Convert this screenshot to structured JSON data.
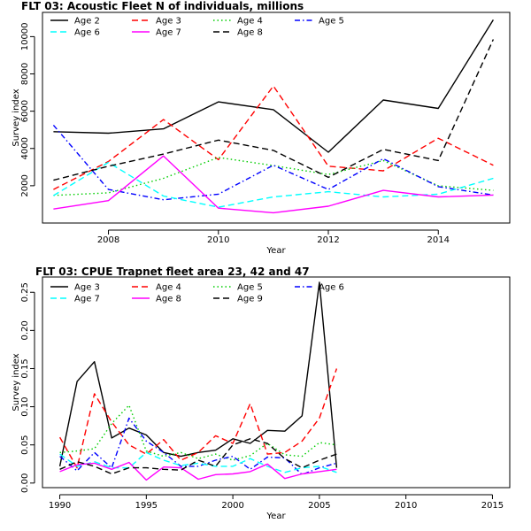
{
  "chart_data": [
    {
      "type": "line",
      "title": "FLT 03: Acoustic Fleet   N of individuals, millions",
      "xlabel": "Year",
      "ylabel": "Survey index",
      "xlim": [
        2006.8,
        2015.3
      ],
      "ylim": [
        0,
        11300
      ],
      "xticks": [
        2008,
        2010,
        2012,
        2014
      ],
      "yticks": [
        2000,
        4000,
        6000,
        8000,
        10000
      ],
      "legend_position": "top-left",
      "x": [
        2007,
        2008,
        2009,
        2010,
        2011,
        2012,
        2013,
        2014,
        2015
      ],
      "series": [
        {
          "name": "Age 2",
          "color": "#000000",
          "dash": "solid",
          "values": [
            4900,
            4820,
            5050,
            6500,
            6080,
            3800,
            6600,
            6150,
            10900
          ]
        },
        {
          "name": "Age 3",
          "color": "#ff0000",
          "dash": "longdash",
          "values": [
            1800,
            3300,
            5550,
            3400,
            7350,
            3050,
            2800,
            4550,
            3100
          ]
        },
        {
          "name": "Age 4",
          "color": "#00cd00",
          "dash": "dotted",
          "values": [
            1480,
            1620,
            2400,
            3520,
            3080,
            2600,
            3350,
            2000,
            1750
          ]
        },
        {
          "name": "Age 5",
          "color": "#0000ff",
          "dash": "dotdash",
          "values": [
            5250,
            1800,
            1250,
            1550,
            3100,
            1800,
            3450,
            1950,
            1500
          ]
        },
        {
          "name": "Age 6",
          "color": "#00ffff",
          "dash": "longdash",
          "values": [
            1470,
            3250,
            1450,
            850,
            1400,
            1680,
            1400,
            1550,
            2400
          ]
        },
        {
          "name": "Age 7",
          "color": "#ff00ff",
          "dash": "solid",
          "values": [
            750,
            1200,
            3600,
            800,
            550,
            900,
            1750,
            1400,
            1500
          ]
        },
        {
          "name": "Age 8",
          "color": "#000000",
          "dash": "longdash",
          "values": [
            2300,
            3050,
            3700,
            4450,
            3900,
            2450,
            3950,
            3350,
            9850
          ]
        }
      ]
    },
    {
      "type": "line",
      "title": "FLT 03: CPUE Trapnet fleet area 23, 42 and 47",
      "xlabel": "Year",
      "ylabel": "Survey index",
      "xlim": [
        1989,
        2016
      ],
      "ylim": [
        -0.006,
        0.27
      ],
      "xticks": [
        1990,
        1995,
        2000,
        2005,
        2010,
        2015
      ],
      "yticks": [
        0.0,
        0.05,
        0.1,
        0.15,
        0.2,
        0.25
      ],
      "ytick_labels": [
        "0.00",
        "0.05",
        "0.10",
        "0.15",
        "0.20",
        "0.25"
      ],
      "legend_position": "top-left",
      "x": [
        1990,
        1991,
        1992,
        1993,
        1994,
        1995,
        1996,
        1997,
        1998,
        1999,
        2000,
        2001,
        2002,
        2003,
        2004,
        2005,
        2006
      ],
      "series": [
        {
          "name": "Age 3",
          "color": "#000000",
          "dash": "solid",
          "values": [
            0.022,
            0.133,
            0.159,
            0.059,
            0.072,
            0.063,
            0.04,
            0.035,
            0.04,
            0.043,
            0.058,
            0.052,
            0.069,
            0.068,
            0.088,
            0.263,
            0.02
          ]
        },
        {
          "name": "Age 4",
          "color": "#ff0000",
          "dash": "longdash",
          "values": [
            0.06,
            0.02,
            0.117,
            0.08,
            0.05,
            0.038,
            0.057,
            0.03,
            0.04,
            0.062,
            0.052,
            0.104,
            0.038,
            0.04,
            0.055,
            0.085,
            0.15
          ]
        },
        {
          "name": "Age 5",
          "color": "#00cd00",
          "dash": "dotted",
          "values": [
            0.04,
            0.042,
            0.045,
            0.078,
            0.102,
            0.042,
            0.035,
            0.04,
            0.032,
            0.038,
            0.03,
            0.036,
            0.052,
            0.037,
            0.035,
            0.053,
            0.05
          ]
        },
        {
          "name": "Age 6",
          "color": "#0000ff",
          "dash": "dotdash",
          "values": [
            0.035,
            0.016,
            0.04,
            0.02,
            0.085,
            0.055,
            0.04,
            0.022,
            0.022,
            0.03,
            0.035,
            0.018,
            0.034,
            0.033,
            0.011,
            0.02,
            0.026
          ]
        },
        {
          "name": "Age 7",
          "color": "#00ffff",
          "dash": "longdash",
          "values": [
            0.038,
            0.022,
            0.028,
            0.02,
            0.02,
            0.04,
            0.03,
            0.023,
            0.026,
            0.022,
            0.022,
            0.032,
            0.022,
            0.014,
            0.02,
            0.022,
            0.014
          ]
        },
        {
          "name": "Age 8",
          "color": "#ff00ff",
          "dash": "solid",
          "values": [
            0.015,
            0.024,
            0.026,
            0.018,
            0.027,
            0.004,
            0.021,
            0.02,
            0.005,
            0.011,
            0.012,
            0.015,
            0.025,
            0.006,
            0.012,
            0.015,
            0.018
          ]
        },
        {
          "name": "Age 9",
          "color": "#000000",
          "dash": "longdash",
          "values": [
            0.018,
            0.028,
            0.022,
            0.012,
            0.02,
            0.02,
            0.018,
            0.017,
            0.03,
            0.022,
            0.05,
            0.058,
            0.052,
            0.032,
            0.02,
            0.03,
            0.038
          ]
        }
      ]
    }
  ]
}
